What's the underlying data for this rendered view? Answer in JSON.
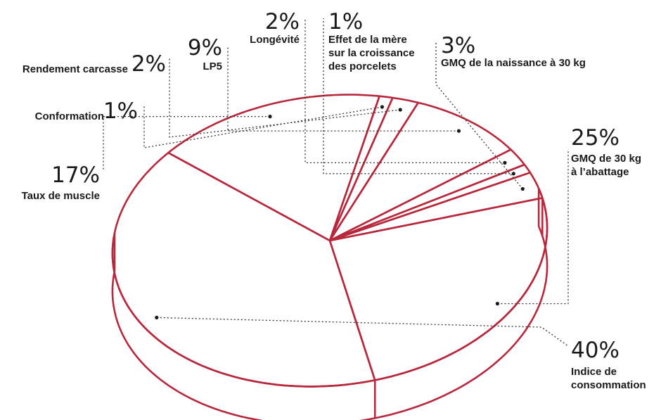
{
  "chart_data": {
    "type": "pie",
    "title": "",
    "stroke_color": "#b8283c",
    "text_color": "#1a1a1a",
    "background": "#ffffff",
    "slices": [
      {
        "value": 25,
        "label": "25%",
        "name_lines": [
          "GMQ de 30 kg",
          "à l’abattage"
        ]
      },
      {
        "value": 40,
        "label": "40%",
        "name_lines": [
          "Indice de",
          "consommation"
        ]
      },
      {
        "value": 17,
        "label": "17%",
        "name_lines": [
          "Taux de muscle"
        ]
      },
      {
        "value": 1,
        "label": "1%",
        "name_lines": [
          "Conformation"
        ]
      },
      {
        "value": 2,
        "label": "2%",
        "name_lines": [
          "Rendement carcasse"
        ]
      },
      {
        "value": 9,
        "label": "9%",
        "name_lines": [
          "LP5"
        ]
      },
      {
        "value": 2,
        "label": "2%",
        "name_lines": [
          "Longévité"
        ]
      },
      {
        "value": 1,
        "label": "1%",
        "name_lines": [
          "Effet de la mère",
          "sur la croissance",
          "des porcelets"
        ]
      },
      {
        "value": 3,
        "label": "3%",
        "name_lines": [
          "GMQ de la naissance à 30 kg"
        ]
      }
    ]
  }
}
